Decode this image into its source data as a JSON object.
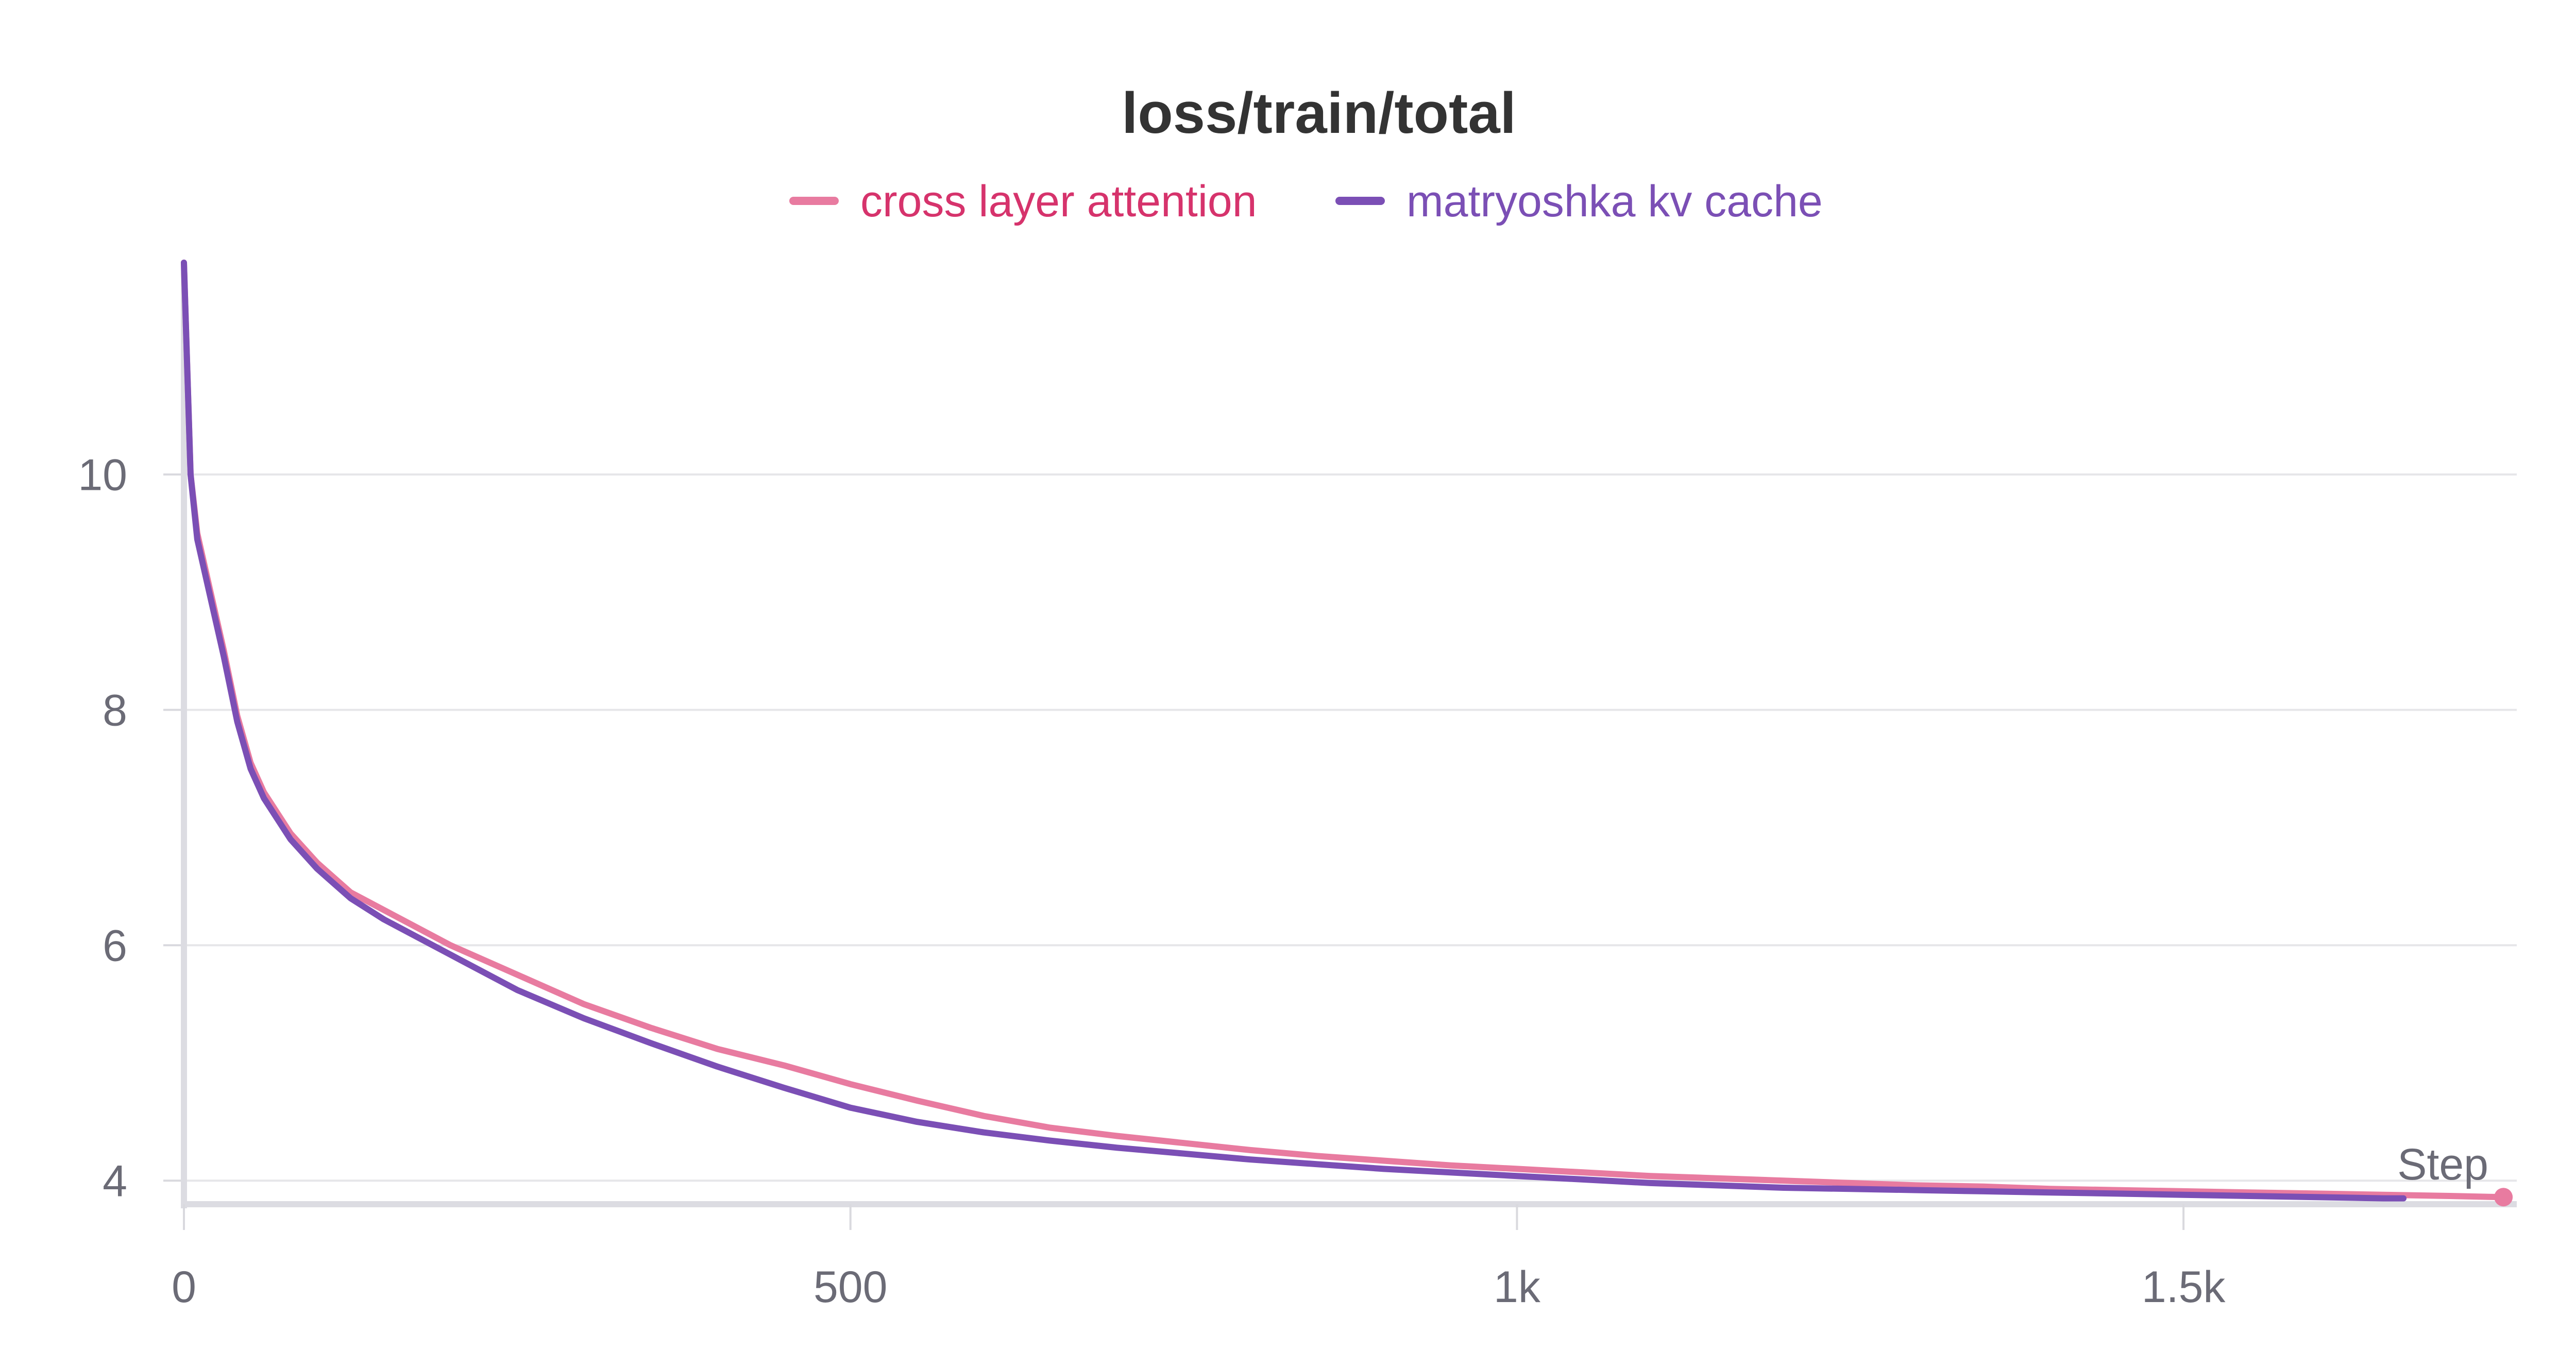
{
  "chart_data": {
    "type": "line",
    "title": "loss/train/total",
    "xlabel": "Step",
    "ylabel": "",
    "xlim": [
      0,
      1750
    ],
    "ylim": [
      3.8,
      11.8
    ],
    "x_ticks": [
      0,
      500,
      1000,
      1500
    ],
    "x_tick_labels": [
      "0",
      "500",
      "1k",
      "1.5k"
    ],
    "y_ticks": [
      4,
      6,
      8,
      10
    ],
    "y_tick_labels": [
      "4",
      "6",
      "8",
      "10"
    ],
    "grid": true,
    "legend_position": "top-center",
    "series": [
      {
        "name": "cross layer attention",
        "color": "#e87ba0",
        "label_color": "#d6336c",
        "x": [
          0,
          5,
          10,
          20,
          30,
          40,
          50,
          60,
          80,
          100,
          125,
          150,
          200,
          250,
          300,
          350,
          400,
          450,
          500,
          550,
          600,
          650,
          700,
          750,
          800,
          850,
          900,
          950,
          1000,
          1050,
          1100,
          1150,
          1200,
          1250,
          1300,
          1350,
          1400,
          1450,
          1500,
          1550,
          1600,
          1650,
          1700,
          1740
        ],
        "y": [
          11.8,
          10.0,
          9.5,
          9.0,
          8.5,
          7.95,
          7.55,
          7.3,
          6.95,
          6.7,
          6.45,
          6.3,
          6.0,
          5.75,
          5.5,
          5.3,
          5.12,
          4.98,
          4.82,
          4.68,
          4.55,
          4.45,
          4.38,
          4.32,
          4.26,
          4.21,
          4.17,
          4.13,
          4.1,
          4.07,
          4.04,
          4.02,
          4.0,
          3.98,
          3.96,
          3.95,
          3.93,
          3.92,
          3.91,
          3.9,
          3.89,
          3.88,
          3.87,
          3.86
        ]
      },
      {
        "name": "matryoshka kv cache",
        "color": "#7b4fb5",
        "label_color": "#7b4fb5",
        "x": [
          0,
          5,
          10,
          20,
          30,
          40,
          50,
          60,
          80,
          100,
          125,
          150,
          200,
          250,
          300,
          350,
          400,
          450,
          500,
          550,
          600,
          650,
          700,
          750,
          800,
          850,
          900,
          950,
          1000,
          1050,
          1100,
          1150,
          1200,
          1250,
          1300,
          1350,
          1400,
          1450,
          1500,
          1550,
          1600,
          1650,
          1665
        ],
        "y": [
          11.8,
          10.0,
          9.45,
          8.95,
          8.45,
          7.9,
          7.5,
          7.25,
          6.9,
          6.65,
          6.4,
          6.22,
          5.92,
          5.62,
          5.38,
          5.17,
          4.97,
          4.79,
          4.62,
          4.5,
          4.41,
          4.34,
          4.28,
          4.23,
          4.18,
          4.14,
          4.1,
          4.07,
          4.04,
          4.01,
          3.98,
          3.96,
          3.94,
          3.93,
          3.92,
          3.91,
          3.9,
          3.89,
          3.88,
          3.87,
          3.86,
          3.85,
          3.85
        ]
      }
    ]
  }
}
